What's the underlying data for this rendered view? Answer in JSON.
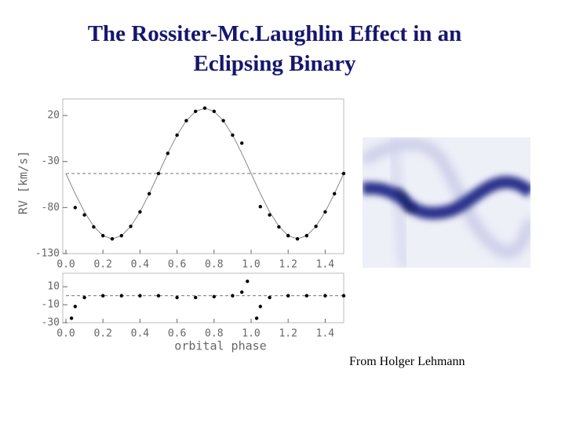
{
  "title": "The Rossiter-Mc.Laughlin Effect in an Eclipsing Binary",
  "caption": "From Holger Lehmann",
  "chart_data": [
    {
      "type": "line",
      "ylabel": "RV  [km/s]",
      "xlim": [
        0,
        1.5
      ],
      "ylim": [
        -130,
        38
      ],
      "xticks": [
        {
          "value": 0,
          "label": "0.0"
        },
        0.2,
        0.4,
        0.6,
        0.8,
        {
          "value": 1,
          "label": "1.0"
        },
        1.2,
        1.4
      ],
      "yticks": [
        20,
        -30,
        -80,
        -130
      ],
      "hline": -43,
      "x": [
        0,
        0.05,
        0.1,
        0.15,
        0.2,
        0.25,
        0.3,
        0.35,
        0.4,
        0.45,
        0.5,
        0.55,
        0.6,
        0.65,
        0.7,
        0.75,
        0.8,
        0.85,
        0.9,
        0.95,
        1,
        1.05,
        1.1,
        1.15,
        1.2,
        1.25,
        1.3,
        1.35,
        1.4,
        1.45,
        1.5
      ],
      "series": [
        {
          "type": "line",
          "color": "#888888",
          "values": [
            -43,
            -64.9,
            -84.7,
            -100.4,
            -110.5,
            -114,
            -110.5,
            -100.4,
            -84.7,
            -64.9,
            -43,
            -21.1,
            -1.3,
            14.4,
            24.5,
            28,
            24.5,
            14.4,
            -1.3,
            -21.1,
            -43,
            -64.9,
            -84.7,
            -100.4,
            -110.5,
            -114,
            -110.5,
            -100.4,
            -84.7,
            -64.9,
            -43
          ]
        },
        {
          "type": "scatter",
          "color": "#000000",
          "values": [
            null,
            -80,
            -88,
            -101,
            -110.5,
            -114,
            -110.5,
            -100.4,
            -84.7,
            -64.9,
            -43,
            -21.1,
            -1.3,
            14.4,
            24.5,
            28,
            24.5,
            14.4,
            -1.3,
            -10,
            null,
            -79,
            -88,
            -101,
            -110.5,
            -114,
            -110.5,
            -100.4,
            -84.7,
            -64.9,
            -43
          ]
        }
      ]
    },
    {
      "type": "scatter",
      "xlabel": "orbital  phase",
      "xlim": [
        0,
        1.5
      ],
      "ylim": [
        -30,
        25
      ],
      "xticks": [
        {
          "value": 0,
          "label": "0.0"
        },
        0.2,
        0.4,
        0.6,
        0.8,
        {
          "value": 1,
          "label": "1.0"
        },
        1.2,
        1.4
      ],
      "yticks": [
        10,
        -10,
        -30
      ],
      "hline": 0,
      "x": [
        0.03,
        0.05,
        0.1,
        0.2,
        0.3,
        0.4,
        0.5,
        0.6,
        0.7,
        0.8,
        0.9,
        0.95,
        0.98,
        1.03,
        1.05,
        1.1,
        1.2,
        1.3,
        1.4,
        1.5
      ],
      "series": [
        {
          "type": "scatter",
          "color": "#000000",
          "values": [
            -25,
            -12,
            -2,
            0,
            0,
            0,
            0,
            -2,
            -2,
            -1,
            0,
            4,
            16,
            -25,
            -12,
            -2,
            0,
            0,
            0,
            0
          ]
        }
      ]
    }
  ]
}
